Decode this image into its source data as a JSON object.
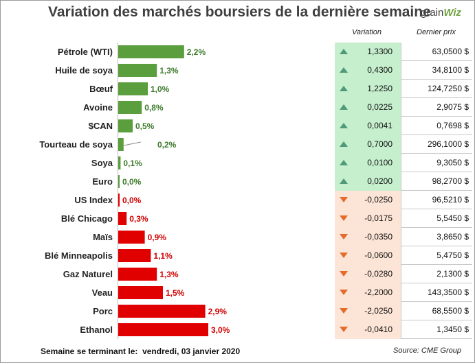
{
  "title": "Variation des marchés boursiers de la dernière semaine",
  "logo": {
    "part1": "grain",
    "part2": "Wiz"
  },
  "headers": {
    "variation": "Variation",
    "price": "Dernier prix"
  },
  "footer": {
    "label": "Semaine se terminant le:",
    "date": "vendredi, 03 janvier 2020"
  },
  "source": "Source: CME Group",
  "colors": {
    "up": "#5a9e3d",
    "down": "#e00000",
    "up_bg": "#c6efce",
    "down_bg": "#fce4d6"
  },
  "chart_data": {
    "type": "bar",
    "orientation": "horizontal",
    "categories": [
      "Pétrole (WTI)",
      "Huile de soya",
      "Bœuf",
      "Avoine",
      "$CAN",
      "Tourteau de soya",
      "Soya",
      "Euro",
      "US Index",
      "Blé Chicago",
      "Maïs",
      "Blé Minneapolis",
      "Gaz Naturel",
      "Veau",
      "Porc",
      "Ethanol"
    ],
    "values": [
      2.2,
      1.3,
      1.0,
      0.8,
      0.5,
      0.2,
      0.1,
      0.0,
      0.0,
      0.3,
      0.9,
      1.1,
      1.3,
      1.5,
      2.9,
      3.0
    ],
    "value_labels": [
      "2,2%",
      "1,3%",
      "1,0%",
      "0,8%",
      "0,5%",
      "0,2%",
      "0,1%",
      "0,0%",
      "0,0%",
      "0,3%",
      "0,9%",
      "1,1%",
      "1,3%",
      "1,5%",
      "2,9%",
      "3,0%"
    ],
    "direction": [
      "up",
      "up",
      "up",
      "up",
      "up",
      "up",
      "up",
      "up",
      "down",
      "down",
      "down",
      "down",
      "down",
      "down",
      "down",
      "down"
    ],
    "variation": [
      "1,3300",
      "0,4300",
      "1,2250",
      "0,0225",
      "0,0041",
      "0,7000",
      "0,0100",
      "0,0200",
      "-0,0250",
      "-0,0175",
      "-0,0350",
      "-0,0600",
      "-0,0280",
      "-2,2000",
      "-2,0250",
      "-0,0410"
    ],
    "last_price": [
      "63,0500 $",
      "34,8100 $",
      "124,7250 $",
      "2,9075 $",
      "0,7698 $",
      "296,1000 $",
      "9,3050 $",
      "98,2700 $",
      "96,5210 $",
      "5,5450 $",
      "3,8650 $",
      "5,4750 $",
      "2,1300 $",
      "143,3500 $",
      "68,5500 $",
      "1,3450 $"
    ]
  }
}
